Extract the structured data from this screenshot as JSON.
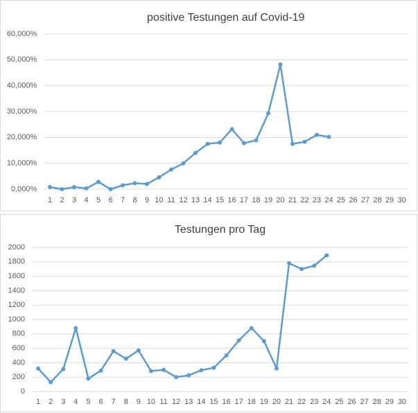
{
  "chart_data": [
    {
      "type": "line",
      "title": "positive Testungen auf Covid-19",
      "categories": [
        "1",
        "2",
        "3",
        "4",
        "5",
        "6",
        "7",
        "8",
        "9",
        "10",
        "11",
        "12",
        "13",
        "14",
        "15",
        "16",
        "17",
        "18",
        "19",
        "20",
        "21",
        "22",
        "23",
        "24",
        "25",
        "26",
        "27",
        "28",
        "29",
        "30"
      ],
      "series": [
        {
          "name": "positive Testungen",
          "color": "#5b9bd5",
          "values": [
            0.8,
            0,
            0.8,
            0.3,
            2.8,
            0,
            1.5,
            2.3,
            2,
            4.6,
            7.6,
            10,
            14,
            17.5,
            18,
            23.2,
            17.8,
            18.9,
            29.3,
            48.2,
            17.5,
            18.3,
            21,
            20.2,
            null,
            null,
            null,
            null,
            null,
            null
          ]
        }
      ],
      "ylim": [
        0,
        60
      ],
      "yticks": [
        {
          "value": 0,
          "label": "0,000%"
        },
        {
          "value": 10,
          "label": "10,000%"
        },
        {
          "value": 20,
          "label": "20,000%"
        },
        {
          "value": 30,
          "label": "30,000%"
        },
        {
          "value": 40,
          "label": "40,000%"
        },
        {
          "value": 50,
          "label": "50,000%"
        },
        {
          "value": 60,
          "label": "60,000%"
        }
      ],
      "grid": true
    },
    {
      "type": "line",
      "title": "Testungen pro Tag",
      "categories": [
        "1",
        "2",
        "3",
        "4",
        "5",
        "6",
        "7",
        "8",
        "9",
        "10",
        "11",
        "12",
        "13",
        "14",
        "15",
        "16",
        "17",
        "18",
        "19",
        "20",
        "21",
        "22",
        "23",
        "24",
        "25",
        "26",
        "27",
        "28",
        "29",
        "30"
      ],
      "series": [
        {
          "name": "Testungen",
          "color": "#5b9bd5",
          "values": [
            320,
            130,
            310,
            880,
            180,
            290,
            560,
            455,
            570,
            285,
            300,
            200,
            225,
            295,
            330,
            500,
            710,
            880,
            700,
            320,
            1780,
            1700,
            1745,
            1890,
            null,
            null,
            null,
            null,
            null,
            null
          ]
        }
      ],
      "ylim": [
        0,
        2000
      ],
      "yticks": [
        0,
        200,
        400,
        600,
        800,
        1000,
        1200,
        1400,
        1600,
        1800,
        2000
      ],
      "grid": true
    }
  ]
}
